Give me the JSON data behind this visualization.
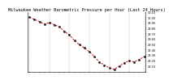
{
  "title": "Milwaukee Weather Barometric Pressure per Hour (Last 24 Hours)",
  "hours": [
    0,
    1,
    2,
    3,
    4,
    5,
    6,
    7,
    8,
    9,
    10,
    11,
    12,
    13,
    14,
    15,
    16,
    17,
    18,
    19,
    20,
    21,
    22,
    23
  ],
  "pressure": [
    30.01,
    29.97,
    29.93,
    29.88,
    29.91,
    29.87,
    29.83,
    29.75,
    29.68,
    29.58,
    29.5,
    29.44,
    29.37,
    29.28,
    29.18,
    29.12,
    29.07,
    29.04,
    29.1,
    29.16,
    29.2,
    29.18,
    29.22,
    29.28
  ],
  "line_color": "#dd0000",
  "marker_color": "#222222",
  "background_color": "#ffffff",
  "grid_color": "#999999",
  "ylim_min": 29.0,
  "ylim_max": 30.1,
  "ytick_values": [
    29.1,
    29.2,
    29.3,
    29.4,
    29.5,
    29.6,
    29.7,
    29.8,
    29.9,
    30.0,
    30.1
  ],
  "vgrid_hours": [
    0,
    4,
    8,
    12,
    16,
    20,
    23
  ],
  "title_fontsize": 3.8,
  "tick_fontsize": 2.5
}
